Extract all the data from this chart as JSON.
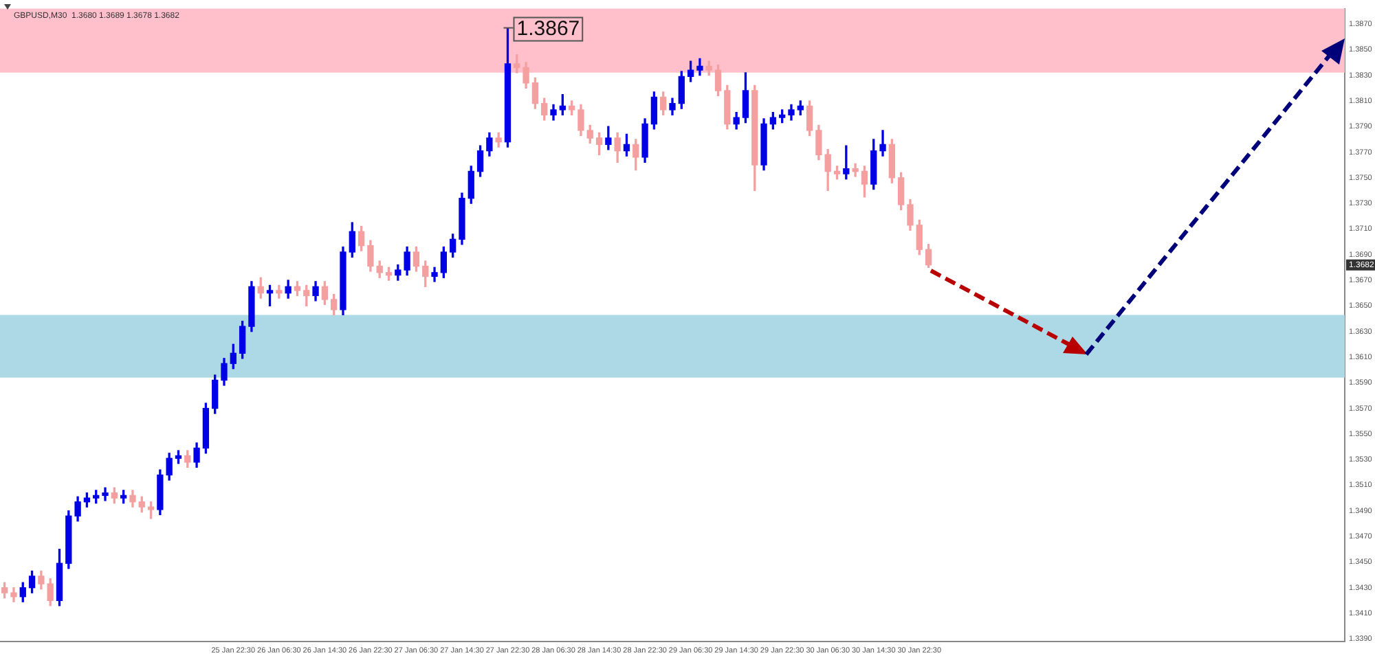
{
  "chart_data": {
    "type": "candlestick",
    "title": "GBPUSD,M30  1.3680 1.3689 1.3678 1.3682",
    "categories": [
      null,
      null,
      null,
      null,
      null,
      null,
      null,
      null,
      null,
      null,
      null,
      null,
      null,
      null,
      null,
      null,
      null,
      null,
      null,
      null,
      null,
      null,
      null,
      null,
      null,
      "25 Jan 22:30",
      null,
      null,
      null,
      null,
      "26 Jan 06:30",
      null,
      null,
      null,
      null,
      "26 Jan 14:30",
      null,
      null,
      null,
      null,
      "26 Jan 22:30",
      null,
      null,
      null,
      null,
      "27 Jan 06:30",
      null,
      null,
      null,
      null,
      "27 Jan 14:30",
      null,
      null,
      null,
      null,
      "27 Jan 22:30",
      null,
      null,
      null,
      null,
      "28 Jan 06:30",
      null,
      null,
      null,
      null,
      "28 Jan 14:30",
      null,
      null,
      null,
      null,
      "28 Jan 22:30",
      null,
      null,
      null,
      null,
      "29 Jan 06:30",
      null,
      null,
      null,
      null,
      "29 Jan 14:30",
      null,
      null,
      null,
      null,
      "29 Jan 22:30",
      null,
      null,
      null,
      null,
      "30 Jan 06:30",
      null,
      null,
      null,
      null,
      "30 Jan 14:30",
      null,
      null,
      null,
      null,
      "30 Jan 22:30",
      null,
      null,
      null,
      null,
      null,
      null,
      null,
      null,
      null,
      null,
      null,
      null,
      null,
      null,
      null,
      null,
      null,
      null,
      null,
      null,
      null,
      null,
      null,
      null,
      null,
      null,
      null,
      null,
      null,
      null,
      null,
      null,
      null,
      null,
      null,
      null,
      null,
      null,
      null,
      null,
      null,
      null,
      null,
      null,
      null,
      null
    ],
    "ohlc": [
      [
        1.343,
        1.3434,
        1.3422,
        1.3426
      ],
      [
        1.3426,
        1.343,
        1.3419,
        1.3423
      ],
      [
        1.3423,
        1.3434,
        1.3419,
        1.343
      ],
      [
        1.343,
        1.3443,
        1.3426,
        1.3439
      ],
      [
        1.3439,
        1.3443,
        1.3429,
        1.3433
      ],
      [
        1.3433,
        1.3437,
        1.3416,
        1.342
      ],
      [
        1.342,
        1.346,
        1.3416,
        1.3449
      ],
      [
        1.3449,
        1.349,
        1.3445,
        1.3486
      ],
      [
        1.3486,
        1.3501,
        1.3482,
        1.3497
      ],
      [
        1.3497,
        1.3504,
        1.3493,
        1.35
      ],
      [
        1.35,
        1.3506,
        1.3496,
        1.3502
      ],
      [
        1.3502,
        1.3508,
        1.3498,
        1.3504
      ],
      [
        1.3504,
        1.3508,
        1.3496,
        1.35
      ],
      [
        1.35,
        1.3506,
        1.3496,
        1.3502
      ],
      [
        1.3502,
        1.3506,
        1.3493,
        1.3497
      ],
      [
        1.3497,
        1.3501,
        1.3489,
        1.3493
      ],
      [
        1.3493,
        1.3497,
        1.3484,
        1.3491
      ],
      [
        1.3491,
        1.3522,
        1.3487,
        1.3518
      ],
      [
        1.3518,
        1.3535,
        1.3514,
        1.3531
      ],
      [
        1.3531,
        1.3537,
        1.3527,
        1.3533
      ],
      [
        1.3533,
        1.3537,
        1.3524,
        1.3528
      ],
      [
        1.3528,
        1.3543,
        1.3524,
        1.3539
      ],
      [
        1.3539,
        1.3574,
        1.3535,
        1.357
      ],
      [
        1.357,
        1.3596,
        1.3566,
        1.3592
      ],
      [
        1.3592,
        1.3609,
        1.3588,
        1.3605
      ],
      [
        1.3605,
        1.362,
        1.3601,
        1.3613
      ],
      [
        1.3613,
        1.3638,
        1.3609,
        1.3634
      ],
      [
        1.3634,
        1.3669,
        1.363,
        1.3665
      ],
      [
        1.3665,
        1.3672,
        1.3656,
        1.366
      ],
      [
        1.366,
        1.3666,
        1.365,
        1.3662
      ],
      [
        1.3662,
        1.3666,
        1.3656,
        1.366
      ],
      [
        1.366,
        1.367,
        1.3656,
        1.3665
      ],
      [
        1.3665,
        1.3669,
        1.3658,
        1.3662
      ],
      [
        1.3662,
        1.3666,
        1.365,
        1.3658
      ],
      [
        1.3658,
        1.3669,
        1.3654,
        1.3665
      ],
      [
        1.3665,
        1.3669,
        1.3651,
        1.3655
      ],
      [
        1.3655,
        1.3659,
        1.3643,
        1.3647
      ],
      [
        1.3647,
        1.3696,
        1.3643,
        1.3692
      ],
      [
        1.3692,
        1.3715,
        1.3688,
        1.3708
      ],
      [
        1.3708,
        1.3712,
        1.3693,
        1.3697
      ],
      [
        1.3697,
        1.3701,
        1.3677,
        1.3681
      ],
      [
        1.3681,
        1.3685,
        1.3672,
        1.3676
      ],
      [
        1.3676,
        1.368,
        1.367,
        1.3674
      ],
      [
        1.3674,
        1.3682,
        1.367,
        1.3678
      ],
      [
        1.3678,
        1.3696,
        1.3674,
        1.3692
      ],
      [
        1.3692,
        1.3696,
        1.3677,
        1.3681
      ],
      [
        1.3681,
        1.3685,
        1.3665,
        1.3673
      ],
      [
        1.3673,
        1.368,
        1.3669,
        1.3676
      ],
      [
        1.3676,
        1.3696,
        1.3672,
        1.3692
      ],
      [
        1.3692,
        1.3706,
        1.3688,
        1.3702
      ],
      [
        1.3702,
        1.3738,
        1.3698,
        1.3734
      ],
      [
        1.3734,
        1.3759,
        1.373,
        1.3755
      ],
      [
        1.3755,
        1.3775,
        1.3751,
        1.3771
      ],
      [
        1.3771,
        1.3785,
        1.3767,
        1.3781
      ],
      [
        1.3781,
        1.3785,
        1.3774,
        1.3778
      ],
      [
        1.3778,
        1.3867,
        1.3774,
        1.3839
      ],
      [
        1.3839,
        1.3846,
        1.3832,
        1.3836
      ],
      [
        1.3836,
        1.384,
        1.382,
        1.3824
      ],
      [
        1.3824,
        1.3828,
        1.3804,
        1.3808
      ],
      [
        1.3808,
        1.3812,
        1.3795,
        1.3799
      ],
      [
        1.3799,
        1.3807,
        1.3795,
        1.3803
      ],
      [
        1.3803,
        1.3815,
        1.3799,
        1.3806
      ],
      [
        1.3806,
        1.381,
        1.3799,
        1.3803
      ],
      [
        1.3803,
        1.3807,
        1.3783,
        1.3787
      ],
      [
        1.3787,
        1.3791,
        1.3777,
        1.3781
      ],
      [
        1.3781,
        1.3785,
        1.3768,
        1.3776
      ],
      [
        1.3776,
        1.379,
        1.3772,
        1.3781
      ],
      [
        1.3781,
        1.3785,
        1.3762,
        1.3771
      ],
      [
        1.3771,
        1.3784,
        1.3767,
        1.3776
      ],
      [
        1.3776,
        1.378,
        1.3756,
        1.3766
      ],
      [
        1.3766,
        1.3796,
        1.3762,
        1.3792
      ],
      [
        1.3792,
        1.3817,
        1.3788,
        1.3813
      ],
      [
        1.3813,
        1.3817,
        1.3799,
        1.3803
      ],
      [
        1.3803,
        1.3812,
        1.3799,
        1.3808
      ],
      [
        1.3808,
        1.3833,
        1.3804,
        1.3829
      ],
      [
        1.3829,
        1.3841,
        1.3825,
        1.3834
      ],
      [
        1.3834,
        1.3843,
        1.383,
        1.3837
      ],
      [
        1.3837,
        1.3841,
        1.383,
        1.3834
      ],
      [
        1.3834,
        1.3838,
        1.3814,
        1.3818
      ],
      [
        1.3818,
        1.3822,
        1.3788,
        1.3792
      ],
      [
        1.3792,
        1.3801,
        1.3788,
        1.3797
      ],
      [
        1.3797,
        1.3832,
        1.3793,
        1.3818
      ],
      [
        1.3818,
        1.3822,
        1.374,
        1.376
      ],
      [
        1.376,
        1.3796,
        1.3756,
        1.3792
      ],
      [
        1.3792,
        1.3801,
        1.3788,
        1.3797
      ],
      [
        1.3797,
        1.3803,
        1.3793,
        1.3799
      ],
      [
        1.3799,
        1.3807,
        1.3795,
        1.3803
      ],
      [
        1.3803,
        1.381,
        1.3799,
        1.3806
      ],
      [
        1.3806,
        1.381,
        1.3783,
        1.3787
      ],
      [
        1.3787,
        1.3791,
        1.3764,
        1.3768
      ],
      [
        1.3768,
        1.3772,
        1.374,
        1.3755
      ],
      [
        1.3755,
        1.3759,
        1.3749,
        1.3753
      ],
      [
        1.3753,
        1.3775,
        1.3749,
        1.3757
      ],
      [
        1.3757,
        1.3761,
        1.3751,
        1.3755
      ],
      [
        1.3755,
        1.3759,
        1.3735,
        1.3745
      ],
      [
        1.3745,
        1.378,
        1.3741,
        1.3771
      ],
      [
        1.3771,
        1.3787,
        1.3767,
        1.3776
      ],
      [
        1.3776,
        1.378,
        1.3746,
        1.375
      ],
      [
        1.375,
        1.3754,
        1.3725,
        1.3729
      ],
      [
        1.3729,
        1.3733,
        1.3709,
        1.3713
      ],
      [
        1.3713,
        1.3717,
        1.369,
        1.3694
      ],
      [
        1.3694,
        1.3698,
        1.368,
        1.3682
      ],
      null,
      null,
      null,
      null,
      null,
      null,
      null,
      null,
      null,
      null,
      null,
      null,
      null,
      null,
      null,
      null,
      null,
      null,
      null,
      null,
      null,
      null,
      null,
      null,
      null,
      null,
      null,
      null,
      null,
      null,
      null,
      null,
      null,
      null,
      null,
      null,
      null,
      null,
      null,
      null,
      null,
      null,
      null,
      null,
      null
    ],
    "colors": [
      "#f4a0a0",
      "#f4a0a0",
      "#0000e6",
      "#0000e6",
      "#f4a0a0",
      "#f4a0a0",
      "#0000e6",
      "#0000e6",
      "#0000e6",
      "#0000e6",
      "#0000e6",
      "#0000e6",
      "#f4a0a0",
      "#0000e6",
      "#f4a0a0",
      "#f4a0a0",
      "#f4a0a0",
      "#0000e6",
      "#0000e6",
      "#0000e6",
      "#f4a0a0",
      "#0000e6",
      "#0000e6",
      "#0000e6",
      "#0000e6",
      "#0000e6",
      "#0000e6",
      "#0000e6",
      "#f4a0a0",
      "#0000e6",
      "#f4a0a0",
      "#0000e6",
      "#f4a0a0",
      "#f4a0a0",
      "#0000e6",
      "#f4a0a0",
      "#f4a0a0",
      "#0000e6",
      "#0000e6",
      "#f4a0a0",
      "#f4a0a0",
      "#f4a0a0",
      "#f4a0a0",
      "#0000e6",
      "#0000e6",
      "#f4a0a0",
      "#f4a0a0",
      "#0000e6",
      "#0000e6",
      "#0000e6",
      "#0000e6",
      "#0000e6",
      "#0000e6",
      "#0000e6",
      "#f4a0a0",
      "#0000e6",
      "#f4a0a0",
      "#f4a0a0",
      "#f4a0a0",
      "#f4a0a0",
      "#0000e6",
      "#0000e6",
      "#f4a0a0",
      "#f4a0a0",
      "#f4a0a0",
      "#f4a0a0",
      "#0000e6",
      "#f4a0a0",
      "#0000e6",
      "#f4a0a0",
      "#0000e6",
      "#0000e6",
      "#f4a0a0",
      "#0000e6",
      "#0000e6",
      "#0000e6",
      "#0000e6",
      "#f4a0a0",
      "#f4a0a0",
      "#f4a0a0",
      "#0000e6",
      "#0000e6",
      "#f4a0a0",
      "#0000e6",
      "#0000e6",
      "#0000e6",
      "#0000e6",
      "#0000e6",
      "#f4a0a0",
      "#f4a0a0",
      "#f4a0a0",
      "#f4a0a0",
      "#0000e6",
      "#f4a0a0",
      "#f4a0a0",
      "#0000e6",
      "#0000e6",
      "#f4a0a0",
      "#f4a0a0",
      "#f4a0a0",
      "#f4a0a0",
      "#f4a0a0",
      null,
      null,
      null,
      null,
      null,
      null,
      null,
      null,
      null,
      null,
      null,
      null,
      null,
      null,
      null,
      null,
      null,
      null,
      null,
      null,
      null,
      null,
      null,
      null,
      null,
      null,
      null,
      null,
      null,
      null,
      null,
      null,
      null,
      null,
      null,
      null,
      null,
      null,
      null,
      null,
      null,
      null,
      null,
      null,
      null
    ],
    "ylim": [
      1.3388,
      1.3882
    ],
    "yticks": [
      {
        "value": 1.339,
        "label": "1.3390"
      },
      {
        "value": 1.341,
        "label": "1.3410"
      },
      {
        "value": 1.343,
        "label": "1.3430"
      },
      {
        "value": 1.345,
        "label": "1.3450"
      },
      {
        "value": 1.347,
        "label": "1.3470"
      },
      {
        "value": 1.349,
        "label": "1.3490"
      },
      {
        "value": 1.351,
        "label": "1.3510"
      },
      {
        "value": 1.353,
        "label": "1.3530"
      },
      {
        "value": 1.355,
        "label": "1.3550"
      },
      {
        "value": 1.357,
        "label": "1.3570"
      },
      {
        "value": 1.359,
        "label": "1.3590"
      },
      {
        "value": 1.361,
        "label": "1.3610"
      },
      {
        "value": 1.363,
        "label": "1.3630"
      },
      {
        "value": 1.365,
        "label": "1.3650"
      },
      {
        "value": 1.367,
        "label": "1.3670"
      },
      {
        "value": 1.369,
        "label": "1.3690"
      },
      {
        "value": 1.371,
        "label": "1.3710"
      },
      {
        "value": 1.373,
        "label": "1.3730"
      },
      {
        "value": 1.375,
        "label": "1.3750"
      },
      {
        "value": 1.377,
        "label": "1.3770"
      },
      {
        "value": 1.379,
        "label": "1.3790"
      },
      {
        "value": 1.381,
        "label": "1.3810"
      },
      {
        "value": 1.383,
        "label": "1.3830"
      },
      {
        "value": 1.385,
        "label": "1.3850"
      },
      {
        "value": 1.387,
        "label": "1.3870"
      }
    ],
    "bands": [
      {
        "axis": "y",
        "from": 1.3832,
        "to": 1.3882,
        "color": "#ffc0cb"
      },
      {
        "axis": "y",
        "from": 1.3594,
        "to": 1.3643,
        "color": "#add8e6"
      }
    ],
    "annotations": [
      "1.3867",
      "1.3682"
    ],
    "grid": false,
    "legend": false
  }
}
